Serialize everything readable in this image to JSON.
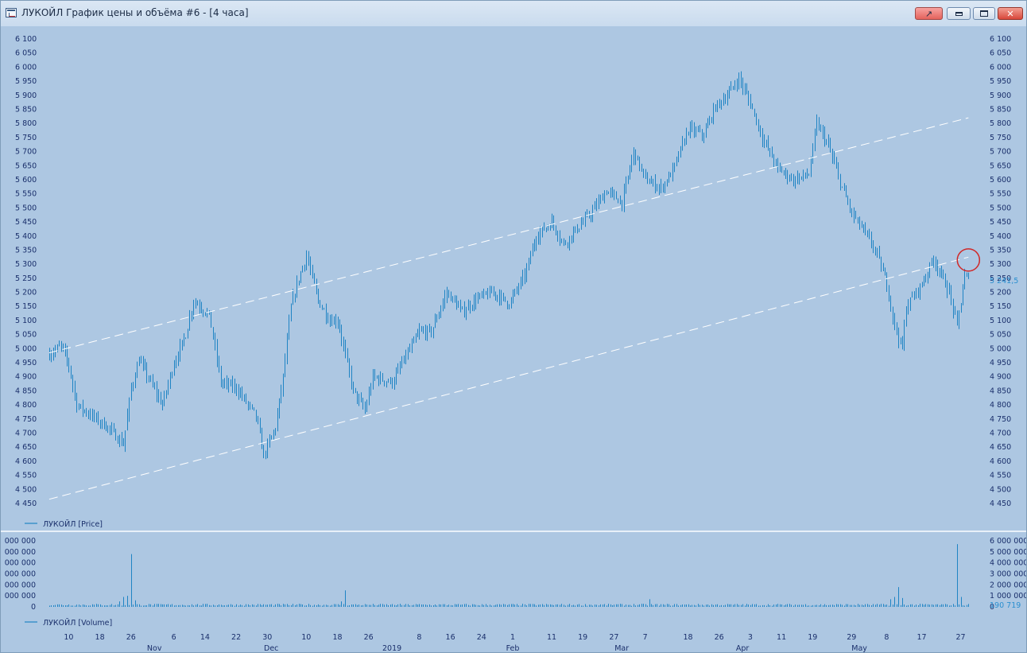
{
  "window": {
    "title": "ЛУКОЙЛ График цены и объёма #6 - [4 часа]"
  },
  "colors": {
    "background": "#adc7e2",
    "bars": "#1f84c4",
    "axis_text": "#1a2f6b",
    "trend_lines": "#ffffff",
    "marker": "#d02828",
    "last_value": "#2a8fd0"
  },
  "chart_data": [
    {
      "type": "ohlc",
      "legend": "ЛУКОЙЛ [Price]",
      "last_value_label": "5 241,5",
      "ylim": [
        4450,
        6100
      ],
      "y_ticks": [
        4450,
        4500,
        4550,
        4600,
        4650,
        4700,
        4750,
        4800,
        4850,
        4900,
        4950,
        5000,
        5050,
        5100,
        5150,
        5200,
        5250,
        5300,
        5350,
        5400,
        5450,
        5500,
        5550,
        5600,
        5650,
        5700,
        5750,
        5800,
        5850,
        5900,
        5950,
        6000,
        6050,
        6100
      ],
      "x_range": [
        "2018-10-04",
        "2019-06-01"
      ],
      "close_path": [
        [
          "2018-10-05",
          4980
        ],
        [
          "2018-10-08",
          5010
        ],
        [
          "2018-10-10",
          4940
        ],
        [
          "2018-10-12",
          4800
        ],
        [
          "2018-10-16",
          4760
        ],
        [
          "2018-10-20",
          4720
        ],
        [
          "2018-10-24",
          4660
        ],
        [
          "2018-10-26",
          4860
        ],
        [
          "2018-10-28",
          4960
        ],
        [
          "2018-10-31",
          4880
        ],
        [
          "2018-11-03",
          4800
        ],
        [
          "2018-11-06",
          4950
        ],
        [
          "2018-11-09",
          5050
        ],
        [
          "2018-11-11",
          5170
        ],
        [
          "2018-11-15",
          5120
        ],
        [
          "2018-11-18",
          4880
        ],
        [
          "2018-11-22",
          4860
        ],
        [
          "2018-11-25",
          4800
        ],
        [
          "2018-11-27",
          4760
        ],
        [
          "2018-11-29",
          4620
        ],
        [
          "2018-12-02",
          4720
        ],
        [
          "2018-12-04",
          4900
        ],
        [
          "2018-12-06",
          5150
        ],
        [
          "2018-12-08",
          5250
        ],
        [
          "2018-12-10",
          5330
        ],
        [
          "2018-12-13",
          5170
        ],
        [
          "2018-12-16",
          5100
        ],
        [
          "2018-12-18",
          5100
        ],
        [
          "2018-12-22",
          4850
        ],
        [
          "2018-12-25",
          4780
        ],
        [
          "2018-12-27",
          4900
        ],
        [
          "2019-01-01",
          4880
        ],
        [
          "2019-01-04",
          4960
        ],
        [
          "2019-01-08",
          5060
        ],
        [
          "2019-01-11",
          5060
        ],
        [
          "2019-01-15",
          5200
        ],
        [
          "2019-01-19",
          5130
        ],
        [
          "2019-01-23",
          5180
        ],
        [
          "2019-01-27",
          5200
        ],
        [
          "2019-01-31",
          5160
        ],
        [
          "2019-02-04",
          5260
        ],
        [
          "2019-02-07",
          5400
        ],
        [
          "2019-02-11",
          5450
        ],
        [
          "2019-02-14",
          5370
        ],
        [
          "2019-02-17",
          5420
        ],
        [
          "2019-02-21",
          5480
        ],
        [
          "2019-02-25",
          5560
        ],
        [
          "2019-03-01",
          5520
        ],
        [
          "2019-03-04",
          5700
        ],
        [
          "2019-03-07",
          5600
        ],
        [
          "2019-03-11",
          5570
        ],
        [
          "2019-03-14",
          5630
        ],
        [
          "2019-03-18",
          5780
        ],
        [
          "2019-03-22",
          5760
        ],
        [
          "2019-03-25",
          5860
        ],
        [
          "2019-03-28",
          5900
        ],
        [
          "2019-03-31",
          5960
        ],
        [
          "2019-04-03",
          5870
        ],
        [
          "2019-04-06",
          5750
        ],
        [
          "2019-04-10",
          5640
        ],
        [
          "2019-04-14",
          5600
        ],
        [
          "2019-04-18",
          5620
        ],
        [
          "2019-04-20",
          5800
        ],
        [
          "2019-04-23",
          5720
        ],
        [
          "2019-04-26",
          5590
        ],
        [
          "2019-04-29",
          5480
        ],
        [
          "2019-05-02",
          5420
        ],
        [
          "2019-05-05",
          5350
        ],
        [
          "2019-05-08",
          5230
        ],
        [
          "2019-05-10",
          5080
        ],
        [
          "2019-05-12",
          5000
        ],
        [
          "2019-05-13",
          5150
        ],
        [
          "2019-05-17",
          5230
        ],
        [
          "2019-05-20",
          5320
        ],
        [
          "2019-05-24",
          5200
        ],
        [
          "2019-05-26",
          5080
        ],
        [
          "2019-05-28",
          5260
        ],
        [
          "2019-05-29",
          5241.5
        ]
      ],
      "channel_upper": [
        [
          "2018-10-05",
          4985
        ],
        [
          "2019-05-29",
          5820
        ]
      ],
      "channel_lower": [
        [
          "2018-10-05",
          4465
        ],
        [
          "2019-05-29",
          5325
        ]
      ],
      "marker": {
        "date": "2019-05-29",
        "value": 5315
      }
    },
    {
      "type": "bar",
      "legend": "ЛУКОЙЛ [Volume]",
      "last_value_label": "190 719",
      "ylim": [
        0,
        6000000
      ],
      "y_ticks_right": [
        "6 000 000",
        "5 000 000",
        "4 000 000",
        "3 000 000",
        "2 000 000",
        "1 000 000",
        "0"
      ],
      "y_ticks_left": [
        "000 000",
        "000 000",
        "000 000",
        "000 000",
        "000 000",
        "000 000",
        "0"
      ],
      "baseline": 200000,
      "spikes": [
        [
          "2018-10-23",
          500000
        ],
        [
          "2018-10-24",
          900000
        ],
        [
          "2018-10-25",
          1000000
        ],
        [
          "2018-10-26",
          4800000
        ],
        [
          "2018-10-27",
          600000
        ],
        [
          "2018-12-19",
          500000
        ],
        [
          "2018-12-20",
          1500000
        ],
        [
          "2019-03-08",
          700000
        ],
        [
          "2019-05-09",
          700000
        ],
        [
          "2019-05-10",
          900000
        ],
        [
          "2019-05-11",
          1800000
        ],
        [
          "2019-05-12",
          800000
        ],
        [
          "2019-05-26",
          5700000
        ],
        [
          "2019-05-27",
          900000
        ]
      ]
    }
  ],
  "x_axis": {
    "day_ticks": [
      [
        "2018-10-10",
        "10"
      ],
      [
        "2018-10-18",
        "18"
      ],
      [
        "2018-10-26",
        "26"
      ],
      [
        "2018-11-06",
        "6"
      ],
      [
        "2018-11-14",
        "14"
      ],
      [
        "2018-11-22",
        "22"
      ],
      [
        "2018-11-30",
        "30"
      ],
      [
        "2018-12-10",
        "10"
      ],
      [
        "2018-12-18",
        "18"
      ],
      [
        "2018-12-26",
        "26"
      ],
      [
        "2019-01-08",
        "8"
      ],
      [
        "2019-01-16",
        "16"
      ],
      [
        "2019-01-24",
        "24"
      ],
      [
        "2019-02-01",
        "1"
      ],
      [
        "2019-02-11",
        "11"
      ],
      [
        "2019-02-19",
        "19"
      ],
      [
        "2019-02-27",
        "27"
      ],
      [
        "2019-03-07",
        "7"
      ],
      [
        "2019-03-18",
        "18"
      ],
      [
        "2019-03-26",
        "26"
      ],
      [
        "2019-04-03",
        "3"
      ],
      [
        "2019-04-11",
        "11"
      ],
      [
        "2019-04-19",
        "19"
      ],
      [
        "2019-04-29",
        "29"
      ],
      [
        "2019-05-08",
        "8"
      ],
      [
        "2019-05-17",
        "17"
      ],
      [
        "2019-05-27",
        "27"
      ]
    ],
    "month_ticks": [
      [
        "2018-11-01",
        "Nov"
      ],
      [
        "2018-12-01",
        "Dec"
      ],
      [
        "2019-01-01",
        "2019"
      ],
      [
        "2019-02-01",
        "Feb"
      ],
      [
        "2019-03-01",
        "Mar"
      ],
      [
        "2019-04-01",
        "Apr"
      ],
      [
        "2019-05-01",
        "May"
      ]
    ]
  }
}
